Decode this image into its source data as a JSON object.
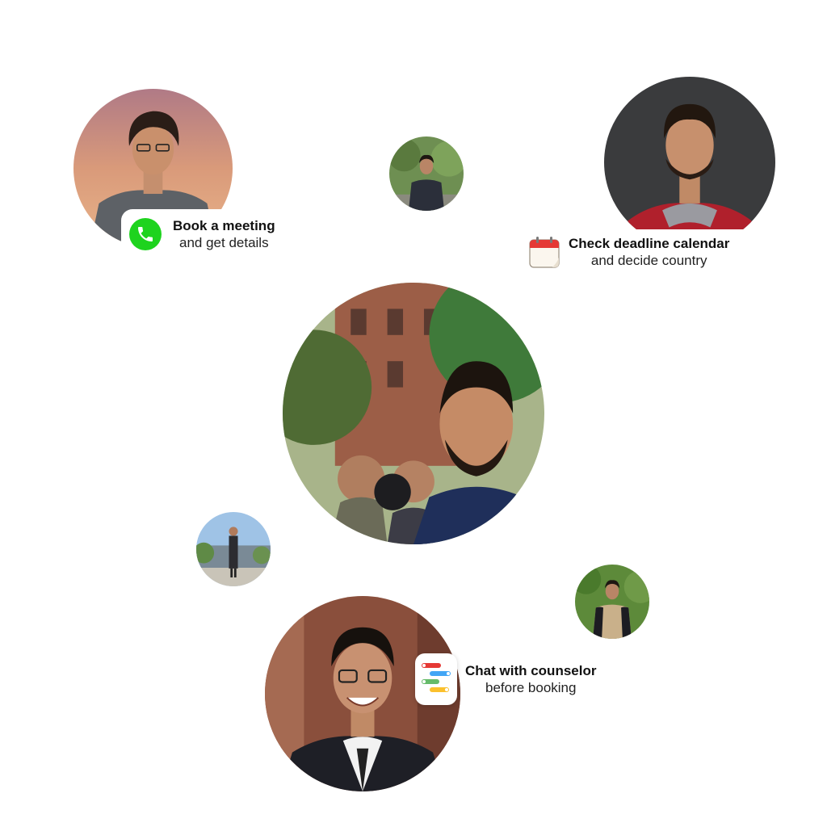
{
  "callouts": {
    "meeting": {
      "title": "Book a meeting",
      "subtitle": "and get details",
      "icon": "phone-icon",
      "icon_color": "#1ed31e"
    },
    "deadline": {
      "title": "Check deadline calendar",
      "subtitle": "and decide country",
      "icon": "calendar-icon",
      "icon_color": "#e53935"
    },
    "chat": {
      "title": "Chat with counselor",
      "subtitle": "before booking",
      "icon": "chat-app-icon"
    }
  },
  "colors": {
    "background": "#ffffff",
    "text": "#111111",
    "accent_green": "#1ed31e"
  },
  "avatars": [
    "avatar-top-left",
    "avatar-small-top",
    "avatar-top-right",
    "avatar-center-group",
    "avatar-small-left",
    "avatar-small-right",
    "avatar-bottom"
  ]
}
